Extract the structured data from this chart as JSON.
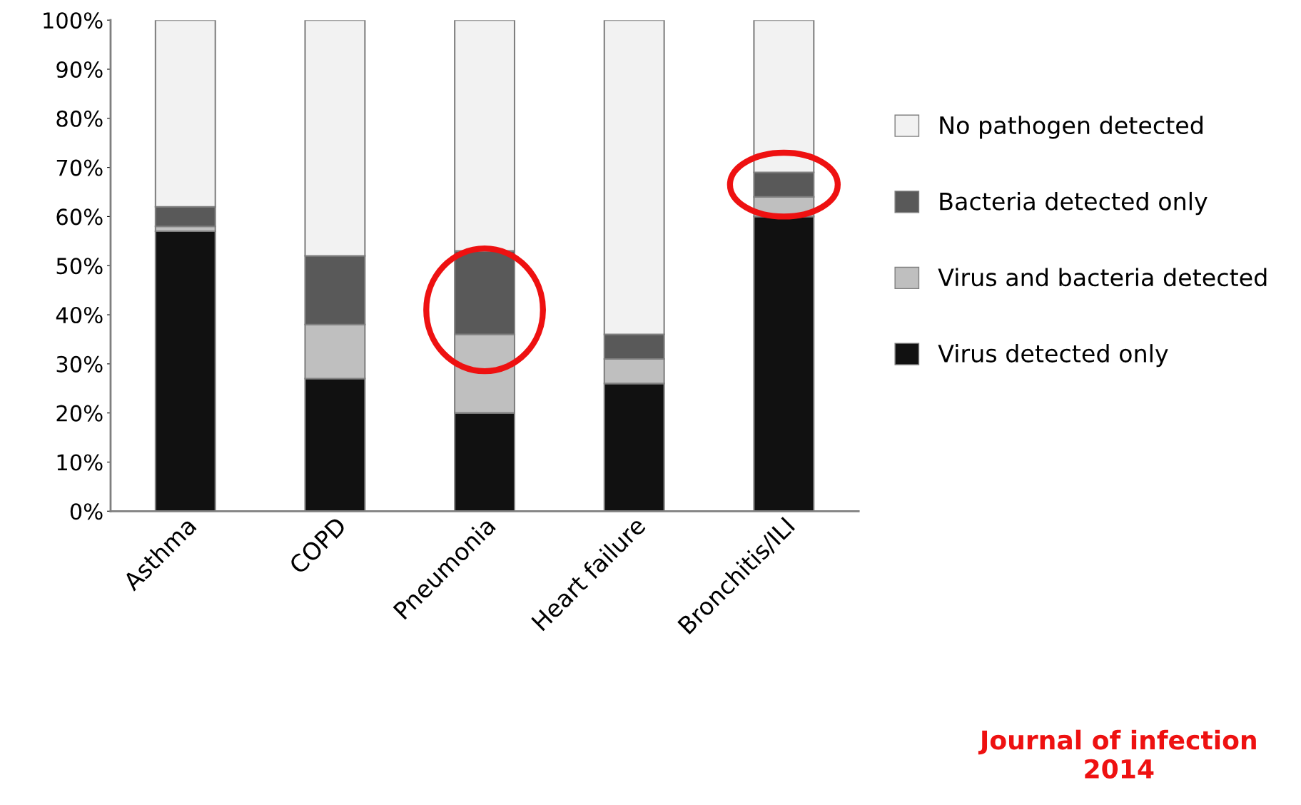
{
  "chart_data": {
    "type": "bar",
    "stacked": true,
    "categories": [
      "Asthma",
      "COPD",
      "Pneumonia",
      "Heart failure",
      "Bronchitis/ILI"
    ],
    "series": [
      {
        "name": "Virus detected only",
        "color": "#111111",
        "values": [
          57,
          27,
          20,
          26,
          60
        ]
      },
      {
        "name": "Virus and bacteria detected",
        "color": "#bfbfbf",
        "values": [
          1,
          11,
          16,
          5,
          4
        ]
      },
      {
        "name": "Bacteria detected only",
        "color": "#595959",
        "values": [
          4,
          14,
          17,
          5,
          5
        ]
      },
      {
        "name": "No pathogen detected",
        "color": "#f2f2f2",
        "values": [
          38,
          48,
          47,
          64,
          31
        ]
      }
    ],
    "ylim": [
      0,
      100
    ],
    "yticks": [
      {
        "value": 0,
        "label": "0%"
      },
      {
        "value": 10,
        "label": "10%"
      },
      {
        "value": 20,
        "label": "20%"
      },
      {
        "value": 30,
        "label": "30%"
      },
      {
        "value": 40,
        "label": "40%"
      },
      {
        "value": 50,
        "label": "50%"
      },
      {
        "value": 60,
        "label": "60%"
      },
      {
        "value": 70,
        "label": "70%"
      },
      {
        "value": 80,
        "label": "80%"
      },
      {
        "value": 90,
        "label": "90%"
      },
      {
        "value": 100,
        "label": "100%"
      }
    ],
    "legend": "right",
    "grid": false,
    "annotations": [
      "Journal of infection\n2014"
    ]
  }
}
